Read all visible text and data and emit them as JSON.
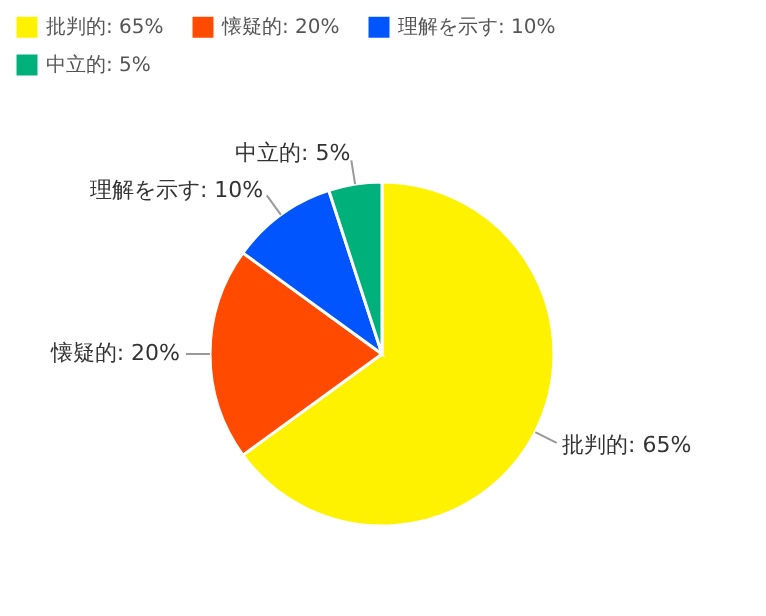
{
  "chart_data": {
    "type": "pie",
    "categories": [
      "批判的",
      "懐疑的",
      "理解を示す",
      "中立的"
    ],
    "values": [
      65,
      20,
      10,
      5
    ],
    "value_labels": [
      "65%",
      "20%",
      "10%",
      "5%"
    ],
    "colors": [
      "#fff200",
      "#ff4a00",
      "#0055ff",
      "#00b07a"
    ],
    "data_labels": true,
    "legend": "top"
  }
}
